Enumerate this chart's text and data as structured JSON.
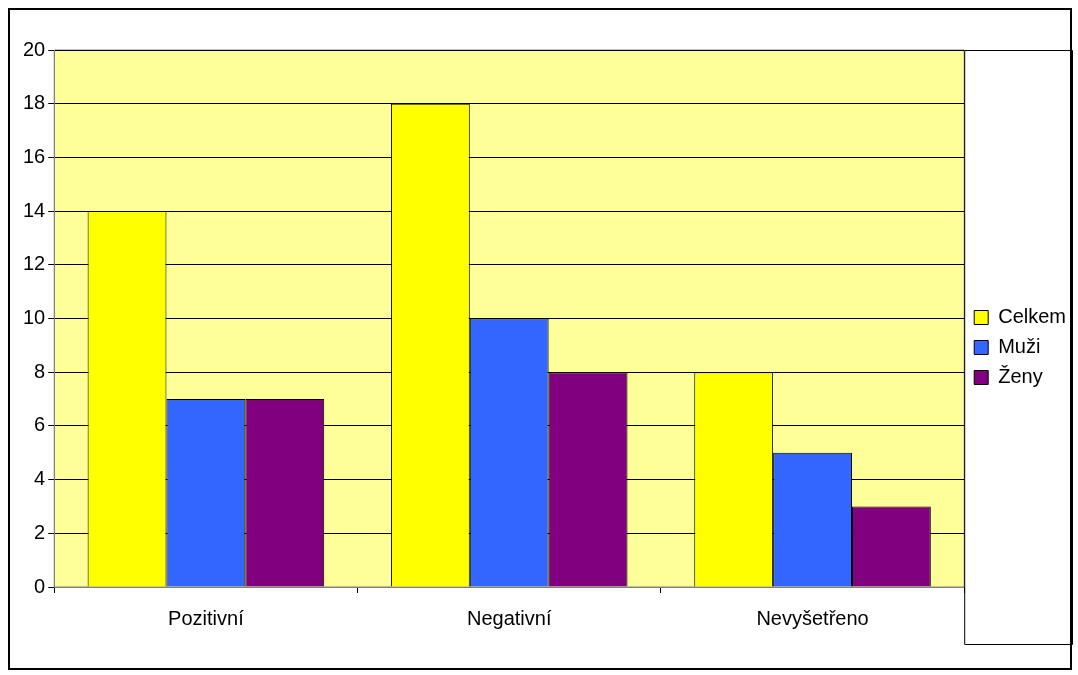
{
  "chart_data": {
    "type": "bar",
    "categories": [
      "Pozitivní",
      "Negativní",
      "Nevyšetřeno"
    ],
    "series": [
      {
        "name": "Celkem",
        "color": "#ffff00",
        "values": [
          14,
          18,
          8
        ]
      },
      {
        "name": "Muži",
        "color": "#3366ff",
        "values": [
          7,
          10,
          5
        ]
      },
      {
        "name": "Ženy",
        "color": "#800080",
        "values": [
          7,
          8,
          3
        ]
      }
    ],
    "ylim": [
      0,
      20
    ],
    "yticks": [
      0,
      2,
      4,
      6,
      8,
      10,
      12,
      14,
      16,
      18,
      20
    ],
    "grid": "y",
    "legend": "right"
  }
}
